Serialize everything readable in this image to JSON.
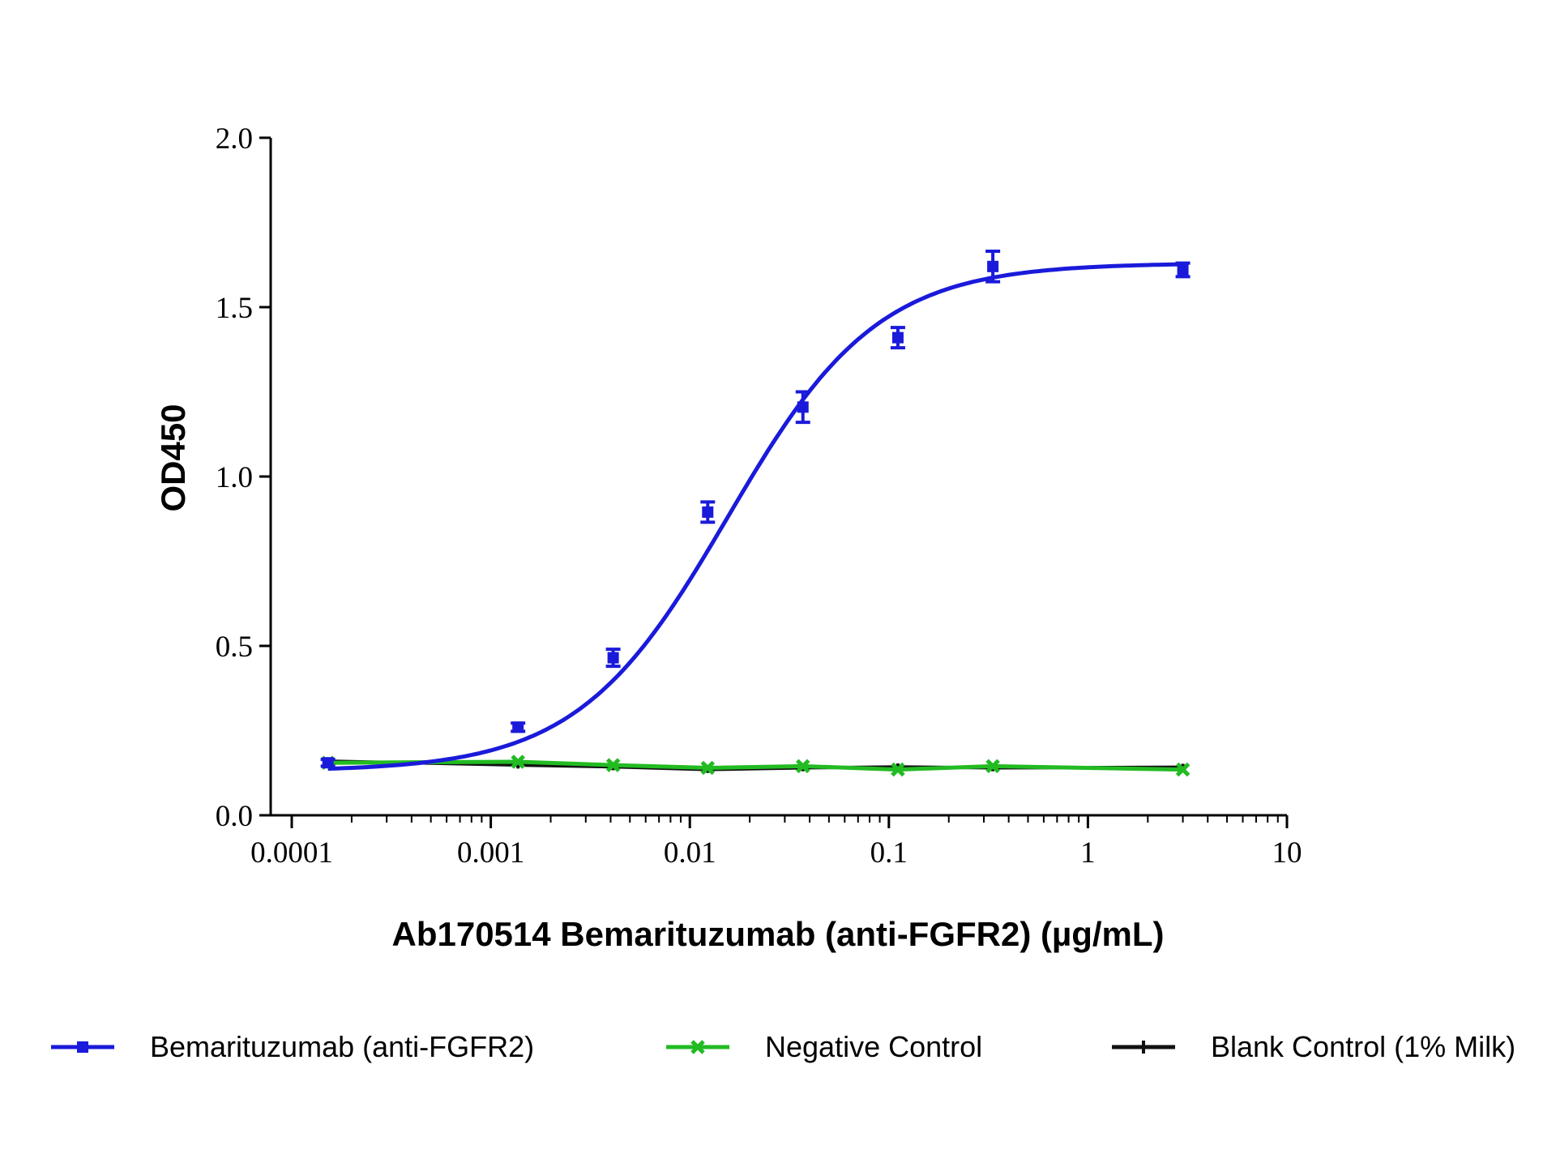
{
  "chart_data": {
    "type": "line",
    "xlabel": "Ab170514 Bemarituzumab (anti-FGFR2) (µg/mL)",
    "ylabel": "OD450",
    "x_scale": "log",
    "xlim": [
      0.0001,
      10
    ],
    "ylim": [
      0,
      2.0
    ],
    "x_ticks": [
      "0.0001",
      "0.001",
      "0.01",
      "0.1",
      "1",
      "10"
    ],
    "y_ticks": [
      "0.0",
      "0.5",
      "1.0",
      "1.5",
      "2.0"
    ],
    "grid": false,
    "legend_position": "bottom",
    "series": [
      {
        "name": "Bemarituzumab (anti-FGFR2)",
        "color": "#1a1adb",
        "marker": "square",
        "fit": "4PL sigmoid",
        "points": [
          {
            "x": 0.000152,
            "y": 0.155,
            "err": 0.01
          },
          {
            "x": 0.00137,
            "y": 0.26,
            "err": 0.012
          },
          {
            "x": 0.00412,
            "y": 0.465,
            "err": 0.025
          },
          {
            "x": 0.0123,
            "y": 0.895,
            "err": 0.03
          },
          {
            "x": 0.037,
            "y": 1.205,
            "err": 0.045
          },
          {
            "x": 0.111,
            "y": 1.41,
            "err": 0.03
          },
          {
            "x": 0.333,
            "y": 1.62,
            "err": 0.045
          },
          {
            "x": 3.0,
            "y": 1.61,
            "err": 0.02
          }
        ]
      },
      {
        "name": "Negative Control",
        "color": "#22bb22",
        "marker": "x",
        "points": [
          {
            "x": 0.000152,
            "y": 0.155
          },
          {
            "x": 0.00137,
            "y": 0.158
          },
          {
            "x": 0.00412,
            "y": 0.148
          },
          {
            "x": 0.0123,
            "y": 0.14
          },
          {
            "x": 0.037,
            "y": 0.145
          },
          {
            "x": 0.111,
            "y": 0.135
          },
          {
            "x": 0.333,
            "y": 0.145
          },
          {
            "x": 3.0,
            "y": 0.135
          }
        ]
      },
      {
        "name": "Blank Control (1% Milk)",
        "color": "#111111",
        "marker": "plus",
        "points": [
          {
            "x": 0.000152,
            "y": 0.16,
            "err": 0.01
          },
          {
            "x": 0.00137,
            "y": 0.148,
            "err": 0.01
          },
          {
            "x": 0.00412,
            "y": 0.143,
            "err": 0.01
          },
          {
            "x": 0.0123,
            "y": 0.135,
            "err": 0.01
          },
          {
            "x": 0.037,
            "y": 0.14,
            "err": 0.01
          },
          {
            "x": 0.111,
            "y": 0.143,
            "err": 0.01
          },
          {
            "x": 0.333,
            "y": 0.14,
            "err": 0.01
          },
          {
            "x": 3.0,
            "y": 0.142,
            "err": 0.01
          }
        ]
      }
    ],
    "fit_parameters": {
      "bottom": 0.13,
      "top": 1.63,
      "ec50": 0.0155,
      "hill": 1.15
    }
  }
}
